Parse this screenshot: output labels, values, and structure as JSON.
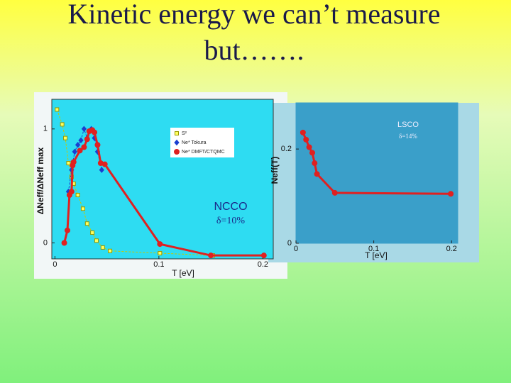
{
  "slide_title": [
    "Kinetic energy we can’t measure",
    "but……."
  ],
  "chart_data": [
    {
      "type": "line",
      "title": "NCCO",
      "subtitle": "δ=10%",
      "x_label": "T [eV]",
      "y_label": "ΔNeff/ΔNeff max",
      "xlim": [
        -0.003,
        0.21
      ],
      "ylim": [
        -0.14,
        1.26
      ],
      "xticks": [
        0,
        0.1,
        0.2
      ],
      "yticks": [
        0,
        1
      ],
      "legend": "upper right",
      "series": [
        {
          "name": "S²",
          "color": "#c8c800",
          "marker": "square",
          "line_style": "dashed",
          "x": [
            0.002,
            0.007,
            0.01,
            0.013,
            0.016,
            0.018,
            0.022,
            0.027,
            0.031,
            0.036,
            0.04,
            0.046,
            0.053,
            0.101,
            0.152
          ],
          "values": [
            1.17,
            1.04,
            0.92,
            0.7,
            0.58,
            0.52,
            0.42,
            0.3,
            0.17,
            0.09,
            0.02,
            -0.04,
            -0.07,
            -0.09,
            -0.11
          ]
        },
        {
          "name": "Ne* Tokura",
          "color": "#1a3fd0",
          "marker": "diamond",
          "line_style": "dashed",
          "x": [
            0.013,
            0.016,
            0.019,
            0.022,
            0.025,
            0.028,
            0.031,
            0.035,
            0.038,
            0.041,
            0.045
          ],
          "values": [
            0.45,
            0.64,
            0.8,
            0.86,
            0.9,
            1.0,
            0.92,
            1.0,
            0.92,
            0.8,
            0.64
          ]
        },
        {
          "name": "Ne* DMFT/CTQMC",
          "color": "#e02020",
          "marker": "circle",
          "line_style": "solid",
          "x": [
            0.009,
            0.012,
            0.014,
            0.016,
            0.017,
            0.018,
            0.024,
            0.028,
            0.031,
            0.033,
            0.036,
            0.038,
            0.041,
            0.044,
            0.048,
            0.101,
            0.15,
            0.201
          ],
          "values": [
            0,
            0.11,
            0.42,
            0.45,
            0.68,
            0.71,
            0.81,
            0.84,
            0.91,
            0.98,
            0.99,
            0.97,
            0.86,
            0.7,
            0.69,
            -0.01,
            -0.11,
            -0.11
          ]
        }
      ]
    },
    {
      "type": "line",
      "title": "LSCO",
      "subtitle": "δ=14%",
      "x_label": "T [eV]",
      "y_label": "Neff(T)",
      "xlim": [
        0,
        0.208
      ],
      "ylim": [
        0,
        0.298
      ],
      "xticks": [
        0,
        0.1,
        0.2
      ],
      "yticks": [
        0,
        0.2
      ],
      "series": [
        {
          "color": "#e02020",
          "marker": "circle",
          "line_style": "solid",
          "x": [
            0.009,
            0.013,
            0.017,
            0.021,
            0.024,
            0.027,
            0.05,
            0.199
          ],
          "values": [
            0.235,
            0.22,
            0.204,
            0.192,
            0.17,
            0.147,
            0.107,
            0.105
          ]
        }
      ]
    }
  ]
}
